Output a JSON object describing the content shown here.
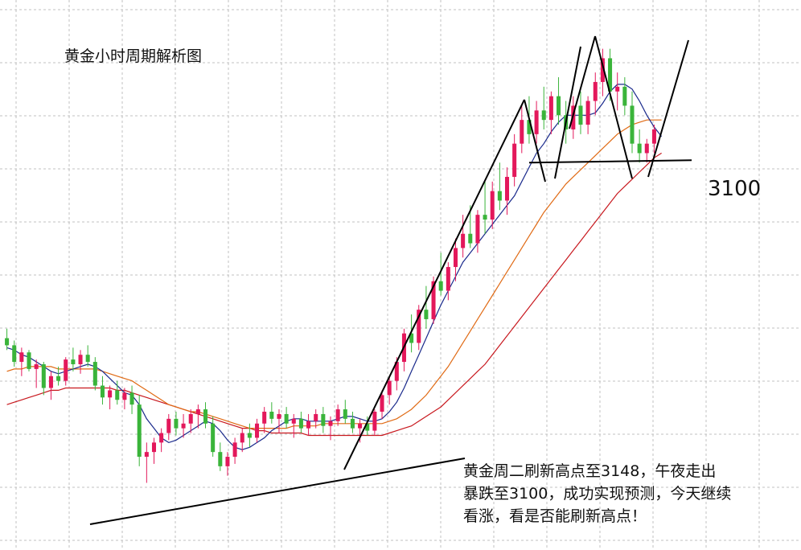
{
  "title": "黄金小时周期解析图",
  "level_label": "3100",
  "annotation": [
    "黄金周二刷新高点至3148，午夜走出",
    "暴跌至3100，成功实现预测，今天继续",
    "看涨，看是否能刷新高点！"
  ],
  "colors": {
    "up": "#e3185b",
    "down": "#3ab43a",
    "ma_fast": "#1a2a8c",
    "ma_mid": "#e06a14",
    "ma_slow": "#c8181e",
    "grid": "#c0c0c0",
    "trendline": "#000000"
  },
  "chart_data": {
    "type": "candlestick",
    "y_ticks_hidden": true,
    "grid": true,
    "level": 3100,
    "series": [
      {
        "name": "K线",
        "type": "candlestick"
      },
      {
        "name": "均线快",
        "type": "line"
      },
      {
        "name": "均线中",
        "type": "line"
      },
      {
        "name": "均线慢",
        "type": "line"
      }
    ],
    "ohlc": [
      [
        3026,
        3030,
        3021,
        3023
      ],
      [
        3023,
        3025,
        3014,
        3016
      ],
      [
        3016,
        3022,
        3010,
        3020
      ],
      [
        3020,
        3021,
        3012,
        3013
      ],
      [
        3013,
        3017,
        3005,
        3015
      ],
      [
        3015,
        3016,
        3002,
        3005
      ],
      [
        3005,
        3012,
        3000,
        3010
      ],
      [
        3010,
        3014,
        3006,
        3008
      ],
      [
        3008,
        3018,
        3006,
        3017
      ],
      [
        3017,
        3022,
        3012,
        3015
      ],
      [
        3015,
        3021,
        3011,
        3019
      ],
      [
        3019,
        3023,
        3014,
        3016
      ],
      [
        3016,
        3018,
        3004,
        3006
      ],
      [
        3006,
        3010,
        2998,
        3001
      ],
      [
        3001,
        3006,
        2996,
        3004
      ],
      [
        3004,
        3008,
        2998,
        3000
      ],
      [
        3000,
        3005,
        2996,
        3003
      ],
      [
        3003,
        3006,
        2994,
        2998
      ],
      [
        2998,
        3002,
        2972,
        2976
      ],
      [
        2976,
        2982,
        2965,
        2978
      ],
      [
        2978,
        2984,
        2973,
        2982
      ],
      [
        2982,
        2988,
        2978,
        2986
      ],
      [
        2986,
        2994,
        2983,
        2992
      ],
      [
        2992,
        2995,
        2985,
        2988
      ],
      [
        2988,
        2994,
        2984,
        2990
      ],
      [
        2990,
        2996,
        2986,
        2994
      ],
      [
        2994,
        2998,
        2988,
        2996
      ],
      [
        2996,
        2999,
        2988,
        2990
      ],
      [
        2990,
        2993,
        2976,
        2978
      ],
      [
        2978,
        2982,
        2970,
        2972
      ],
      [
        2972,
        2978,
        2968,
        2976
      ],
      [
        2976,
        2984,
        2973,
        2982
      ],
      [
        2982,
        2988,
        2978,
        2986
      ],
      [
        2986,
        2990,
        2980,
        2984
      ],
      [
        2984,
        2992,
        2982,
        2990
      ],
      [
        2990,
        2997,
        2986,
        2995
      ],
      [
        2995,
        2999,
        2990,
        2992
      ],
      [
        2992,
        2996,
        2986,
        2994
      ],
      [
        2994,
        2997,
        2988,
        2990
      ],
      [
        2990,
        2994,
        2984,
        2992
      ],
      [
        2992,
        2995,
        2986,
        2988
      ],
      [
        2988,
        2994,
        2985,
        2991
      ],
      [
        2991,
        2996,
        2988,
        2994
      ],
      [
        2994,
        2997,
        2986,
        2989
      ],
      [
        2989,
        2993,
        2983,
        2991
      ],
      [
        2991,
        2998,
        2989,
        2996
      ],
      [
        2996,
        3000,
        2990,
        2992
      ],
      [
        2992,
        2995,
        2986,
        2988
      ],
      [
        2988,
        2992,
        2982,
        2990
      ],
      [
        2990,
        2993,
        2985,
        2987
      ],
      [
        2987,
        2996,
        2985,
        2995
      ],
      [
        2995,
        3004,
        2992,
        3002
      ],
      [
        3002,
        3010,
        2998,
        3008
      ],
      [
        3008,
        3018,
        3004,
        3016
      ],
      [
        3016,
        3030,
        3012,
        3028
      ],
      [
        3028,
        3036,
        3020,
        3024
      ],
      [
        3024,
        3040,
        3021,
        3038
      ],
      [
        3038,
        3048,
        3030,
        3034
      ],
      [
        3034,
        3052,
        3032,
        3050
      ],
      [
        3050,
        3062,
        3044,
        3046
      ],
      [
        3046,
        3058,
        3042,
        3056
      ],
      [
        3056,
        3068,
        3050,
        3064
      ],
      [
        3064,
        3078,
        3060,
        3070
      ],
      [
        3070,
        3082,
        3064,
        3066
      ],
      [
        3066,
        3080,
        3062,
        3078
      ],
      [
        3078,
        3092,
        3070,
        3076
      ],
      [
        3076,
        3092,
        3072,
        3088
      ],
      [
        3088,
        3100,
        3080,
        3084
      ],
      [
        3084,
        3098,
        3078,
        3094
      ],
      [
        3094,
        3112,
        3090,
        3108
      ],
      [
        3108,
        3124,
        3104,
        3118
      ],
      [
        3118,
        3128,
        3108,
        3112
      ],
      [
        3112,
        3126,
        3108,
        3122
      ],
      [
        3122,
        3132,
        3114,
        3118
      ],
      [
        3118,
        3130,
        3112,
        3128
      ],
      [
        3128,
        3136,
        3116,
        3120
      ],
      [
        3120,
        3126,
        3108,
        3114
      ],
      [
        3114,
        3128,
        3110,
        3124
      ],
      [
        3124,
        3130,
        3112,
        3116
      ],
      [
        3116,
        3128,
        3112,
        3126
      ],
      [
        3126,
        3138,
        3120,
        3134
      ],
      [
        3134,
        3148,
        3128,
        3144
      ],
      [
        3144,
        3148,
        3126,
        3130
      ],
      [
        3130,
        3138,
        3122,
        3132
      ],
      [
        3132,
        3136,
        3120,
        3124
      ],
      [
        3124,
        3130,
        3104,
        3108
      ],
      [
        3108,
        3114,
        3100,
        3104
      ],
      [
        3104,
        3110,
        3100,
        3108
      ],
      [
        3108,
        3116,
        3104,
        3114
      ]
    ],
    "ma_fast": [
      3022,
      3021,
      3019,
      3018,
      3016,
      3014,
      3012,
      3011,
      3012,
      3013,
      3014,
      3015,
      3014,
      3012,
      3009,
      3006,
      3003,
      3002,
      2998,
      2992,
      2988,
      2984,
      2982,
      2983,
      2985,
      2987,
      2989,
      2991,
      2990,
      2987,
      2983,
      2980,
      2979,
      2980,
      2982,
      2984,
      2987,
      2989,
      2991,
      2992,
      2992,
      2991,
      2991,
      2991,
      2991,
      2992,
      2993,
      2993,
      2992,
      2991,
      2991,
      2992,
      2995,
      2999,
      3005,
      3012,
      3019,
      3026,
      3033,
      3040,
      3046,
      3052,
      3058,
      3062,
      3066,
      3070,
      3074,
      3078,
      3082,
      3086,
      3092,
      3098,
      3104,
      3108,
      3113,
      3117,
      3120,
      3120,
      3120,
      3120,
      3121,
      3125,
      3130,
      3133,
      3133,
      3131,
      3126,
      3120,
      3115,
      3111
    ],
    "ma_mid": [
      3012,
      3013,
      3013,
      3014,
      3014,
      3014,
      3014,
      3013,
      3013,
      3013,
      3013,
      3013,
      3013,
      3012,
      3011,
      3010,
      3009,
      3008,
      3006,
      3004,
      3002,
      3000,
      2998,
      2997,
      2996,
      2995,
      2995,
      2994,
      2993,
      2992,
      2991,
      2990,
      2989,
      2988,
      2988,
      2988,
      2988,
      2988,
      2988,
      2989,
      2989,
      2989,
      2989,
      2990,
      2990,
      2990,
      2990,
      2990,
      2990,
      2990,
      2990,
      2990,
      2991,
      2992,
      2994,
      2996,
      2999,
      3002,
      3006,
      3010,
      3014,
      3019,
      3024,
      3029,
      3034,
      3039,
      3044,
      3049,
      3054,
      3059,
      3064,
      3069,
      3074,
      3079,
      3083,
      3087,
      3091,
      3094,
      3097,
      3100,
      3103,
      3106,
      3109,
      3112,
      3114,
      3116,
      3117,
      3118,
      3118,
      3118
    ],
    "ma_slow": [
      2998,
      2999,
      3000,
      3001,
      3002,
      3003,
      3004,
      3004,
      3005,
      3005,
      3005,
      3005,
      3005,
      3005,
      3005,
      3004,
      3004,
      3003,
      3002,
      3001,
      3000,
      2999,
      2998,
      2997,
      2996,
      2995,
      2994,
      2993,
      2992,
      2991,
      2990,
      2989,
      2988,
      2988,
      2987,
      2987,
      2986,
      2986,
      2986,
      2986,
      2986,
      2985,
      2985,
      2985,
      2985,
      2985,
      2985,
      2985,
      2985,
      2985,
      2985,
      2985,
      2986,
      2987,
      2988,
      2989,
      2991,
      2993,
      2995,
      2997,
      3000,
      3003,
      3006,
      3009,
      3012,
      3015,
      3019,
      3023,
      3027,
      3031,
      3035,
      3039,
      3043,
      3047,
      3051,
      3055,
      3059,
      3063,
      3067,
      3071,
      3075,
      3079,
      3083,
      3087,
      3090,
      3093,
      3096,
      3099,
      3102,
      3104
    ]
  }
}
